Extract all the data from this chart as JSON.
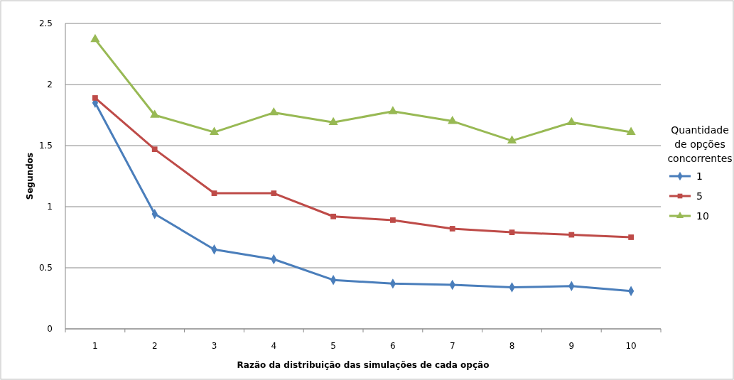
{
  "chart_data": {
    "type": "line",
    "xlabel": "Razão da distribuição das simulações de cada opção",
    "ylabel": "Segundos",
    "legend_title": "Quantidade de opções concorrentes",
    "categories": [
      "1",
      "2",
      "3",
      "4",
      "5",
      "6",
      "7",
      "8",
      "9",
      "10"
    ],
    "series": [
      {
        "name": "1",
        "color": "#4a7ebb",
        "marker": "diamond",
        "values": [
          1.85,
          0.94,
          0.65,
          0.57,
          0.4,
          0.37,
          0.36,
          0.34,
          0.35,
          0.31
        ]
      },
      {
        "name": "5",
        "color": "#be4b48",
        "marker": "square",
        "values": [
          1.89,
          1.47,
          1.11,
          1.11,
          0.92,
          0.89,
          0.82,
          0.79,
          0.77,
          0.75
        ]
      },
      {
        "name": "10",
        "color": "#98b954",
        "marker": "triangle",
        "values": [
          2.37,
          1.75,
          1.61,
          1.77,
          1.69,
          1.78,
          1.7,
          1.54,
          1.69,
          1.61
        ]
      }
    ],
    "ylim": [
      0,
      2.5
    ],
    "yticks": [
      0,
      0.5,
      1,
      1.5,
      2,
      2.5
    ],
    "grid": "y",
    "legend": "right",
    "line_style": "solid"
  }
}
